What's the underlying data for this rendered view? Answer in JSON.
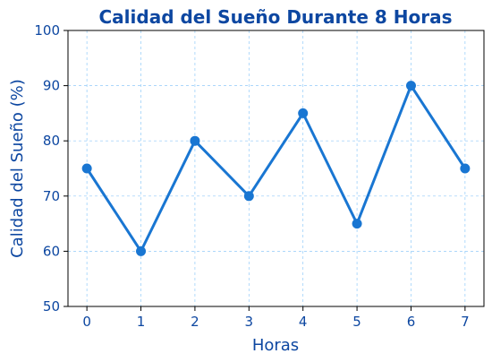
{
  "chart_data": {
    "type": "line",
    "title": "Calidad del Sueño Durante 8 Horas",
    "xlabel": "Horas",
    "ylabel": "Calidad del Sueño (%)",
    "x": [
      0,
      1,
      2,
      3,
      4,
      5,
      6,
      7
    ],
    "values": [
      75,
      60,
      80,
      70,
      85,
      65,
      90,
      75
    ],
    "x_ticks": [
      "0",
      "1",
      "2",
      "3",
      "4",
      "5",
      "6",
      "7"
    ],
    "y_ticks": [
      "50",
      "60",
      "70",
      "80",
      "90",
      "100"
    ],
    "xlim": [
      -0.35,
      7.35
    ],
    "ylim": [
      50,
      100
    ],
    "grid": true,
    "colors": {
      "line": "#1976d2",
      "text": "#0d47a1",
      "grid": "#90caf9"
    }
  }
}
